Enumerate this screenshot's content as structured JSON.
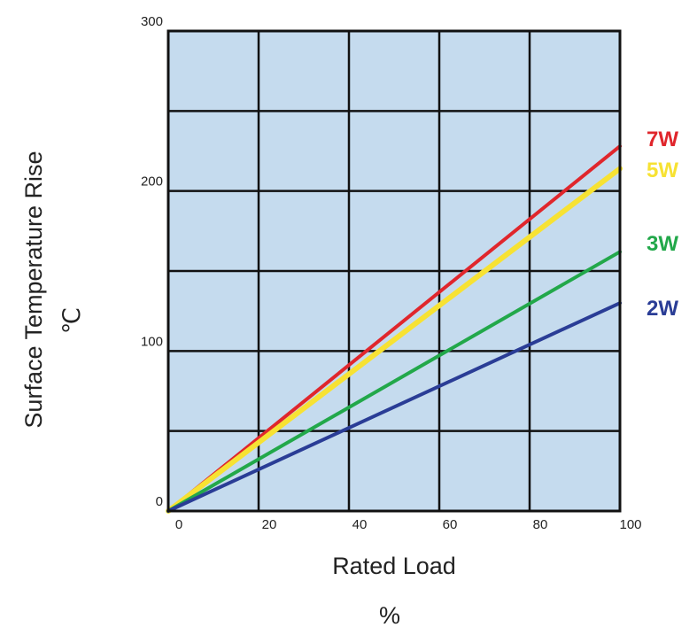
{
  "chart_data": {
    "type": "line",
    "xlabel": "Rated Load",
    "xunit": "%",
    "ylabel": "Surface Temperature Rise",
    "yunit": "℃",
    "xlim": [
      0,
      100
    ],
    "ylim": [
      0,
      300
    ],
    "x_ticks": [
      "0",
      "20",
      "40",
      "60",
      "80",
      "100"
    ],
    "y_ticks": [
      "0",
      "100",
      "200",
      "300"
    ],
    "grid": true,
    "background_color": "#c5dbee",
    "series": [
      {
        "name": "7W",
        "color": "#e0262c",
        "x": [
          0,
          100
        ],
        "y": [
          0,
          228
        ]
      },
      {
        "name": "5W",
        "color": "#f7e233",
        "x": [
          0,
          100
        ],
        "y": [
          0,
          214
        ]
      },
      {
        "name": "3W",
        "color": "#22a84a",
        "x": [
          0,
          100
        ],
        "y": [
          0,
          162
        ]
      },
      {
        "name": "2W",
        "color": "#2a3d96",
        "x": [
          0,
          100
        ],
        "y": [
          0,
          130
        ]
      }
    ]
  }
}
